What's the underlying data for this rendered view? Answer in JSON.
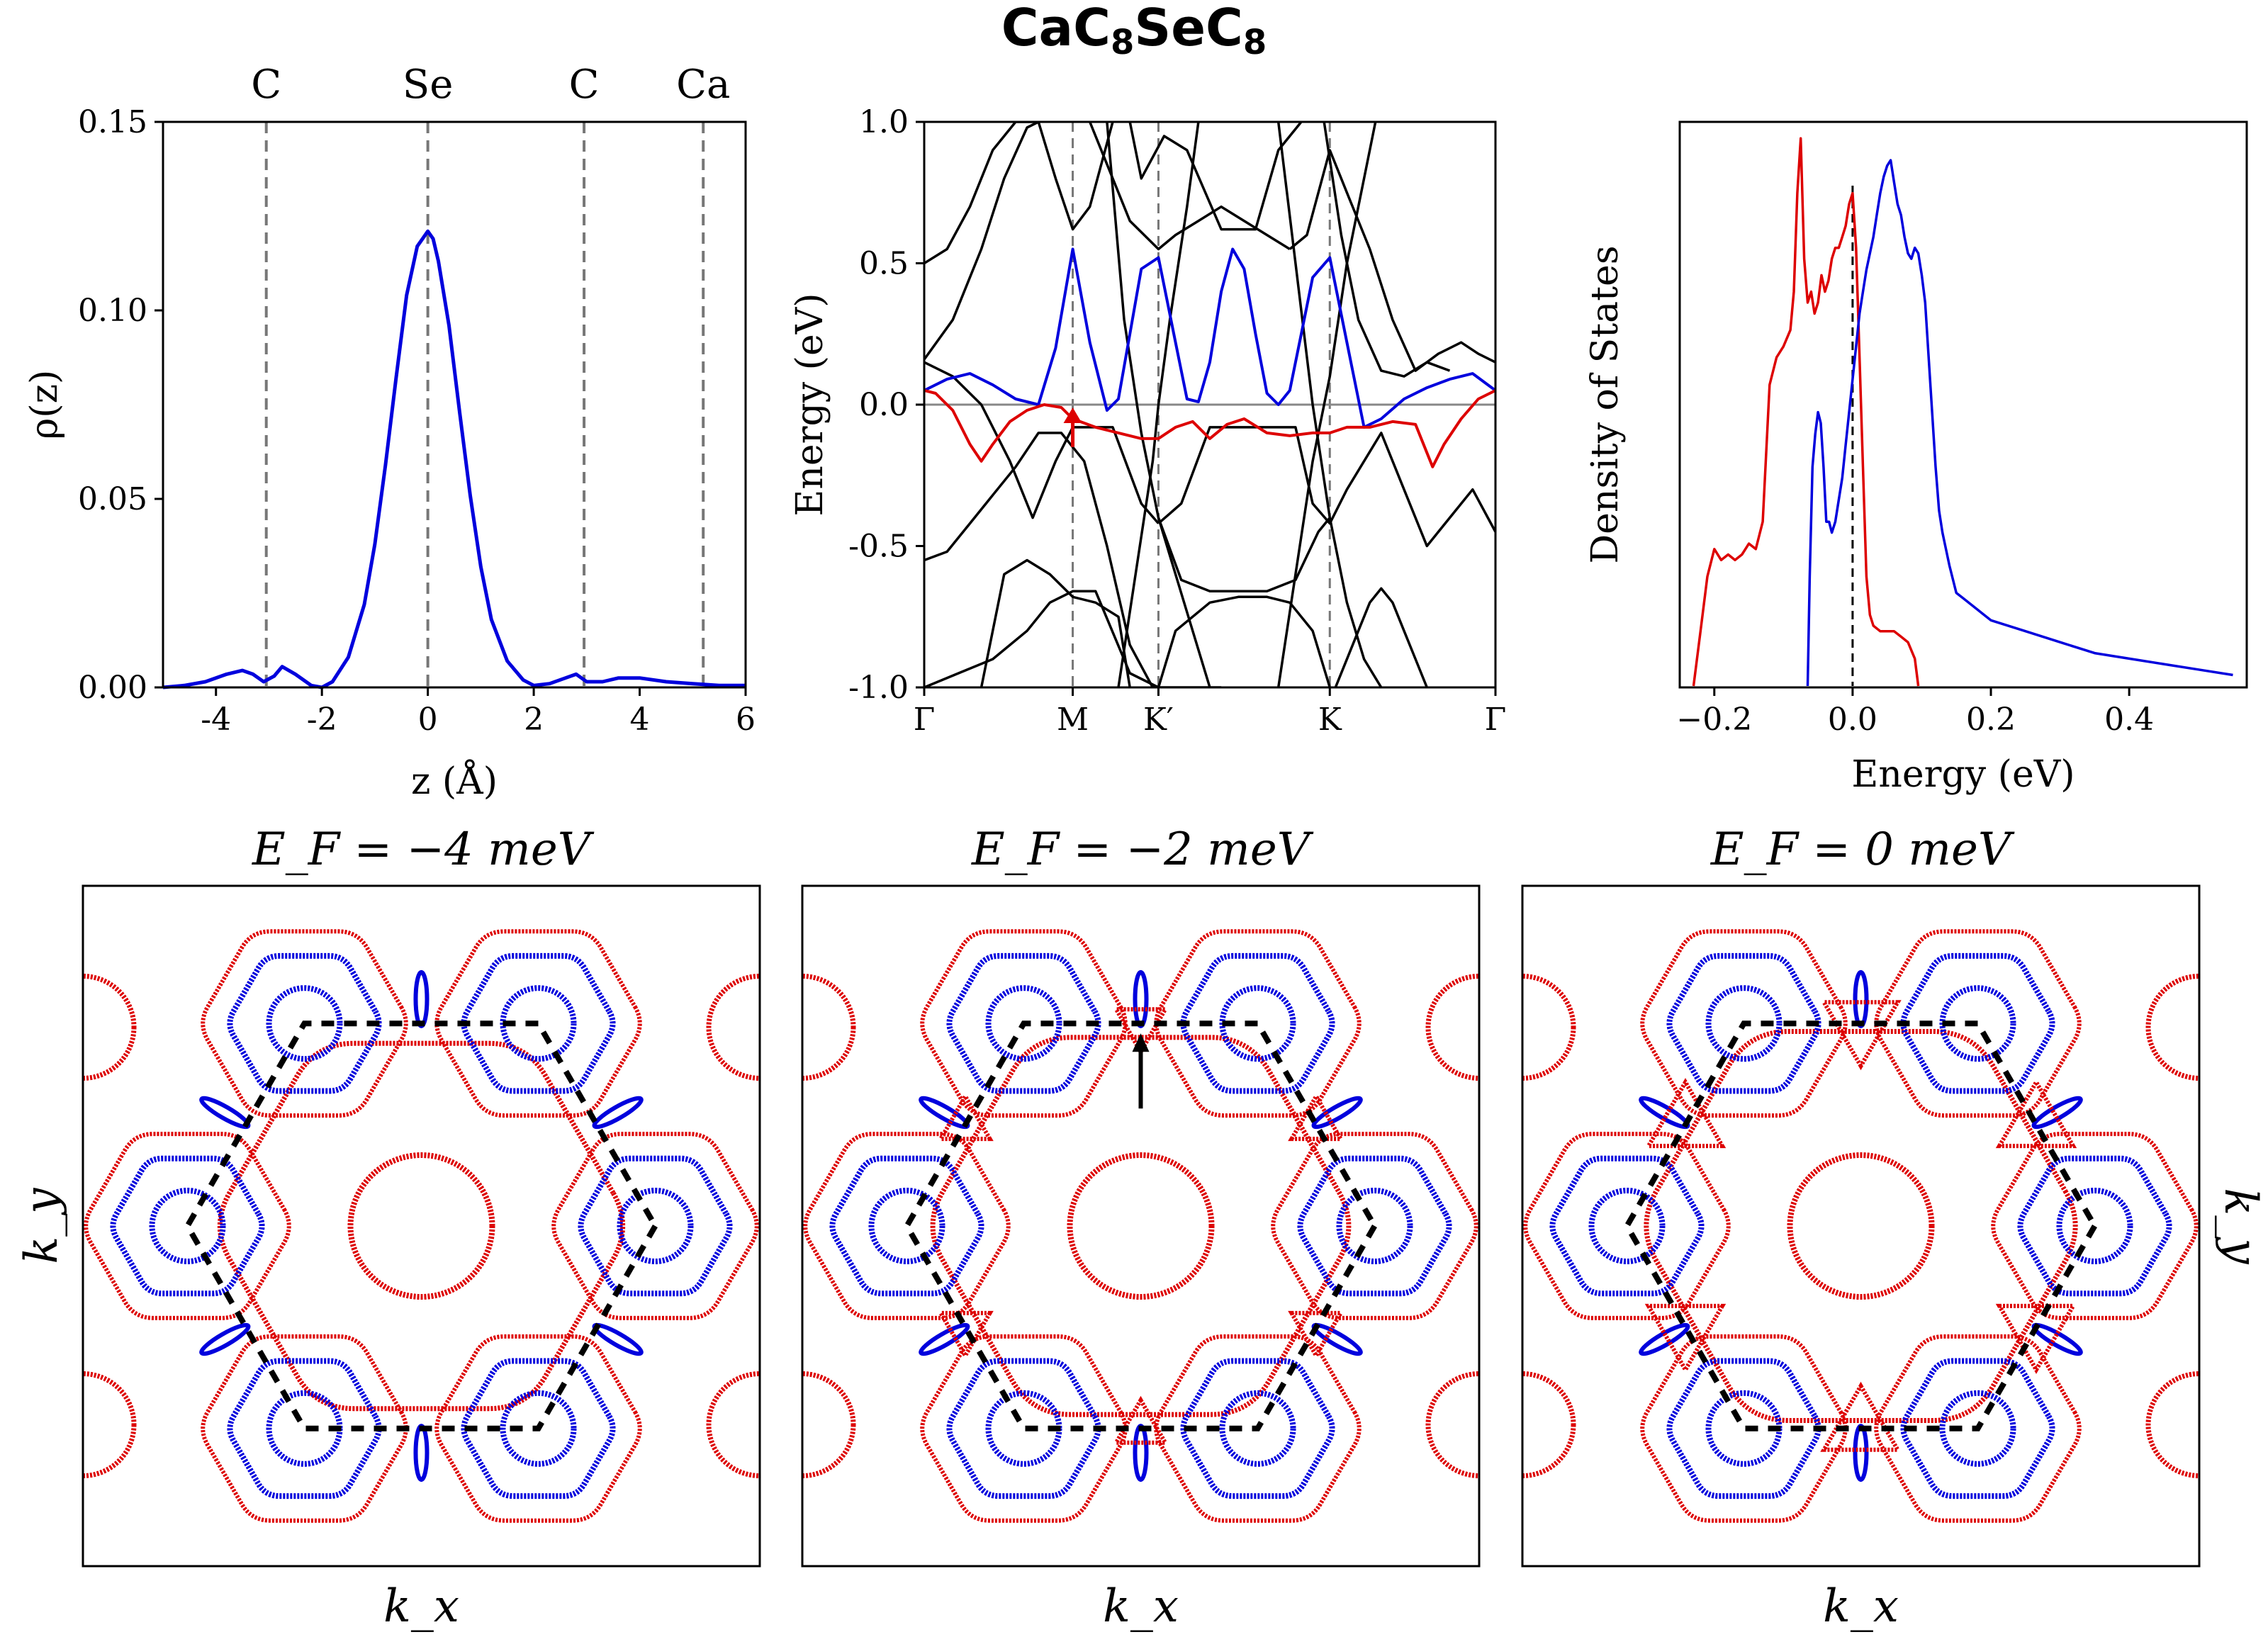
{
  "figure": {
    "title_main": "CaC",
    "title_sub1": "8",
    "title_mid": "SeC",
    "title_sub2": "8"
  },
  "chart_data": [
    {
      "type": "line",
      "panel": "charge-density",
      "xlabel": "z (Å)",
      "ylabel": "ρ(z)",
      "xlim": [
        -5,
        6
      ],
      "ylim": [
        0,
        0.15
      ],
      "xticks": [
        -4,
        -2,
        0,
        2,
        4,
        6
      ],
      "xtick_labels": [
        "-4",
        "-2",
        "0",
        "2",
        "4",
        "6"
      ],
      "yticks": [
        0,
        0.05,
        0.1,
        0.15
      ],
      "ytick_labels": [
        "0.00",
        "0.05",
        "0.10",
        "0.15"
      ],
      "atom_lines": [
        {
          "label": "C",
          "z": -3.05
        },
        {
          "label": "Se",
          "z": 0.0
        },
        {
          "label": "C",
          "z": 2.95
        },
        {
          "label": "Ca",
          "z": 5.2
        }
      ],
      "series": [
        {
          "name": "rho",
          "color": "#0000dd",
          "x": [
            -5.0,
            -4.6,
            -4.2,
            -3.8,
            -3.5,
            -3.3,
            -3.1,
            -2.9,
            -2.75,
            -2.5,
            -2.2,
            -2.0,
            -1.8,
            -1.5,
            -1.2,
            -1.0,
            -0.8,
            -0.6,
            -0.4,
            -0.2,
            -0.1,
            0.0,
            0.1,
            0.2,
            0.4,
            0.6,
            0.8,
            1.0,
            1.2,
            1.5,
            1.8,
            2.0,
            2.3,
            2.6,
            2.8,
            3.0,
            3.3,
            3.6,
            4.0,
            4.5,
            5.0,
            5.5,
            6.0
          ],
          "y": [
            0.0,
            0.0005,
            0.0015,
            0.0035,
            0.0045,
            0.0035,
            0.0015,
            0.003,
            0.0055,
            0.0035,
            0.0005,
            0.0,
            0.0015,
            0.008,
            0.022,
            0.038,
            0.059,
            0.082,
            0.104,
            0.117,
            0.119,
            0.121,
            0.119,
            0.113,
            0.096,
            0.073,
            0.051,
            0.032,
            0.018,
            0.007,
            0.002,
            0.0005,
            0.001,
            0.0025,
            0.0035,
            0.0015,
            0.0015,
            0.0025,
            0.0025,
            0.0015,
            0.001,
            0.0005,
            0.0005
          ]
        }
      ]
    },
    {
      "type": "line",
      "panel": "band-structure",
      "ylabel": "Energy (eV)",
      "ylim": [
        -1.0,
        1.0
      ],
      "xlim": [
        0,
        1
      ],
      "k_points": [
        {
          "label": "Γ",
          "x": 0.0
        },
        {
          "label": "M",
          "x": 0.26
        },
        {
          "label": "K′",
          "x": 0.41
        },
        {
          "label": "K",
          "x": 0.71
        },
        {
          "label": "Γ",
          "x": 1.0
        }
      ],
      "yticks": [
        -1.0,
        -0.5,
        0.0,
        0.5,
        1.0
      ],
      "ytick_labels": [
        "-1.0",
        "-0.5",
        "0.0",
        "0.5",
        "1.0"
      ],
      "fermi_level": 0.0,
      "arrow": {
        "x": 0.26,
        "from": -0.15,
        "to": -0.02,
        "color": "#dd0000"
      },
      "series": [
        {
          "name": "band-blue",
          "color": "#0000dd",
          "x": [
            0.0,
            0.04,
            0.08,
            0.12,
            0.16,
            0.2,
            0.23,
            0.26,
            0.29,
            0.32,
            0.34,
            0.36,
            0.38,
            0.41,
            0.44,
            0.46,
            0.48,
            0.5,
            0.52,
            0.54,
            0.56,
            0.58,
            0.6,
            0.62,
            0.64,
            0.66,
            0.68,
            0.71,
            0.74,
            0.77,
            0.8,
            0.84,
            0.88,
            0.92,
            0.96,
            1.0
          ],
          "y": [
            0.05,
            0.09,
            0.11,
            0.07,
            0.02,
            0.0,
            0.2,
            0.55,
            0.22,
            -0.02,
            0.02,
            0.25,
            0.48,
            0.52,
            0.22,
            0.02,
            0.01,
            0.15,
            0.4,
            0.55,
            0.48,
            0.25,
            0.04,
            0.0,
            0.05,
            0.25,
            0.45,
            0.52,
            0.22,
            -0.08,
            -0.05,
            0.02,
            0.06,
            0.09,
            0.11,
            0.05
          ]
        },
        {
          "name": "band-red",
          "color": "#dd0000",
          "x": [
            0.0,
            0.02,
            0.05,
            0.08,
            0.1,
            0.12,
            0.15,
            0.18,
            0.21,
            0.24,
            0.26,
            0.3,
            0.34,
            0.38,
            0.41,
            0.44,
            0.47,
            0.5,
            0.53,
            0.56,
            0.6,
            0.64,
            0.68,
            0.71,
            0.74,
            0.78,
            0.82,
            0.86,
            0.89,
            0.91,
            0.94,
            0.97,
            1.0
          ],
          "y": [
            0.05,
            0.04,
            -0.02,
            -0.14,
            -0.2,
            -0.14,
            -0.06,
            -0.02,
            0.0,
            -0.01,
            -0.05,
            -0.08,
            -0.1,
            -0.12,
            -0.12,
            -0.08,
            -0.06,
            -0.12,
            -0.07,
            -0.05,
            -0.1,
            -0.11,
            -0.1,
            -0.1,
            -0.08,
            -0.08,
            -0.06,
            -0.07,
            -0.22,
            -0.14,
            -0.05,
            0.02,
            0.05
          ]
        }
      ],
      "black_bands": [
        {
          "x": [
            0.0,
            0.05,
            0.1,
            0.15,
            0.19,
            0.23,
            0.26,
            0.29,
            0.33,
            0.38,
            0.41
          ],
          "y": [
            0.15,
            0.1,
            0.0,
            -0.2,
            -0.4,
            -0.2,
            -0.08,
            -0.08,
            -0.08,
            -0.35,
            -0.42
          ]
        },
        {
          "x": [
            0.41,
            0.45,
            0.5,
            0.55,
            0.6,
            0.65,
            0.68,
            0.71,
            0.74,
            0.8,
            0.84,
            0.88,
            0.92,
            0.96,
            1.0
          ],
          "y": [
            -0.42,
            -0.35,
            -0.08,
            -0.08,
            -0.08,
            -0.08,
            -0.35,
            -0.42,
            -0.3,
            -0.1,
            -0.3,
            -0.5,
            -0.4,
            -0.3,
            -0.45
          ]
        },
        {
          "x": [
            0.0,
            0.04,
            0.08,
            0.12,
            0.16,
            0.2,
            0.24,
            0.28,
            0.32,
            0.36,
            0.4,
            0.44,
            0.48,
            0.52
          ],
          "y": [
            -0.55,
            -0.52,
            -0.42,
            -0.32,
            -0.22,
            -0.1,
            -0.1,
            -0.2,
            -0.5,
            -0.85,
            -1.0,
            -1.0,
            -1.0,
            -1.0
          ]
        },
        {
          "x": [
            0.1,
            0.14,
            0.18,
            0.22,
            0.26,
            0.3,
            0.34,
            0.36
          ],
          "y": [
            -1.0,
            -0.6,
            -0.55,
            -0.6,
            -0.68,
            -0.7,
            -0.75,
            -1.0
          ]
        },
        {
          "x": [
            0.0,
            0.06,
            0.12,
            0.18,
            0.22,
            0.26,
            0.3,
            0.36,
            0.41
          ],
          "y": [
            -1.0,
            -0.95,
            -0.9,
            -0.8,
            -0.7,
            -0.66,
            -0.66,
            -0.95,
            -1.0
          ]
        },
        {
          "x": [
            0.41,
            0.44,
            0.5,
            0.55,
            0.6,
            0.64,
            0.68,
            0.71
          ],
          "y": [
            -1.0,
            -0.8,
            -0.7,
            -0.68,
            -0.68,
            -0.7,
            -0.8,
            -1.0
          ]
        },
        {
          "x": [
            0.41,
            0.45,
            0.5,
            0.55,
            0.6,
            0.65,
            0.69,
            0.71
          ],
          "y": [
            -0.4,
            -0.62,
            -0.66,
            -0.66,
            -0.66,
            -0.62,
            -0.45,
            -0.4
          ]
        },
        {
          "x": [
            0.72,
            0.75,
            0.78,
            0.8,
            0.82,
            0.84,
            0.86,
            0.88
          ],
          "y": [
            -1.0,
            -0.85,
            -0.7,
            -0.65,
            -0.7,
            -0.8,
            -0.9,
            -1.0
          ]
        },
        {
          "x": [
            0.0,
            0.04,
            0.08,
            0.12,
            0.16,
            0.2,
            0.23,
            0.26,
            0.29,
            0.33
          ],
          "y": [
            0.5,
            0.55,
            0.7,
            0.9,
            1.0,
            1.0,
            0.8,
            0.62,
            0.7,
            1.0
          ]
        },
        {
          "x": [
            0.0,
            0.05,
            0.1,
            0.14,
            0.18,
            0.2
          ],
          "y": [
            0.16,
            0.3,
            0.55,
            0.8,
            0.98,
            1.0
          ]
        },
        {
          "x": [
            0.29,
            0.32,
            0.36,
            0.41,
            0.44,
            0.48,
            0.52,
            0.56,
            0.6,
            0.64
          ],
          "y": [
            1.0,
            0.85,
            0.65,
            0.55,
            0.6,
            0.65,
            0.7,
            0.65,
            0.6,
            0.55
          ]
        },
        {
          "x": [
            0.36,
            0.38,
            0.42,
            0.46,
            0.52,
            0.58,
            0.62,
            0.66
          ],
          "y": [
            1.0,
            0.8,
            0.95,
            0.9,
            0.62,
            0.62,
            0.9,
            1.0
          ]
        },
        {
          "x": [
            0.64,
            0.67,
            0.71,
            0.74,
            0.78,
            0.82,
            0.86,
            0.9,
            0.94,
            0.97,
            1.0
          ],
          "y": [
            0.55,
            0.6,
            0.9,
            0.75,
            0.55,
            0.3,
            0.12,
            0.18,
            0.22,
            0.18,
            0.15
          ]
        },
        {
          "x": [
            0.7,
            0.73,
            0.76,
            0.8,
            0.84,
            0.88,
            0.92
          ],
          "y": [
            1.0,
            0.6,
            0.3,
            0.12,
            0.1,
            0.15,
            0.12
          ]
        },
        {
          "x": [
            0.32,
            0.35,
            0.38,
            0.41,
            0.44,
            0.47,
            0.5
          ],
          "y": [
            1.0,
            0.3,
            -0.1,
            -0.4,
            -0.6,
            -0.8,
            -1.0
          ]
        },
        {
          "x": [
            0.34,
            0.37,
            0.4,
            0.41,
            0.43,
            0.46,
            0.48
          ],
          "y": [
            -1.0,
            -0.6,
            -0.2,
            0.0,
            0.3,
            0.7,
            1.0
          ]
        },
        {
          "x": [
            0.62,
            0.65,
            0.68,
            0.71,
            0.74,
            0.77,
            0.8
          ],
          "y": [
            1.0,
            0.5,
            0.0,
            -0.4,
            -0.7,
            -0.9,
            -1.0
          ]
        },
        {
          "x": [
            0.62,
            0.65,
            0.68,
            0.71,
            0.74,
            0.77,
            0.79
          ],
          "y": [
            -1.0,
            -0.6,
            -0.2,
            0.1,
            0.5,
            0.8,
            1.0
          ]
        }
      ]
    },
    {
      "type": "line",
      "panel": "density-of-states",
      "xlabel": "Energy (eV)",
      "ylabel": "Density of States",
      "xlim": [
        -0.25,
        0.57
      ],
      "xticks": [
        -0.2,
        0.0,
        0.2,
        0.4
      ],
      "xtick_labels": [
        "−0.2",
        "0.0",
        "0.2",
        "0.4"
      ],
      "fermi_level": 0.0,
      "series": [
        {
          "name": "dos-red",
          "color": "#dd0000",
          "x": [
            -0.23,
            -0.22,
            -0.21,
            -0.2,
            -0.19,
            -0.18,
            -0.17,
            -0.16,
            -0.15,
            -0.14,
            -0.13,
            -0.12,
            -0.11,
            -0.1,
            -0.09,
            -0.085,
            -0.08,
            -0.075,
            -0.07,
            -0.065,
            -0.06,
            -0.055,
            -0.05,
            -0.045,
            -0.04,
            -0.035,
            -0.03,
            -0.025,
            -0.02,
            -0.015,
            -0.01,
            -0.005,
            0.0,
            0.005,
            0.01,
            0.015,
            0.02,
            0.025,
            0.03,
            0.04,
            0.05,
            0.06,
            0.07,
            0.08,
            0.09,
            0.095
          ],
          "y": [
            0.0,
            0.1,
            0.2,
            0.25,
            0.23,
            0.24,
            0.23,
            0.24,
            0.26,
            0.25,
            0.3,
            0.55,
            0.6,
            0.62,
            0.65,
            0.72,
            0.9,
            1.0,
            0.78,
            0.7,
            0.72,
            0.68,
            0.7,
            0.75,
            0.72,
            0.74,
            0.78,
            0.8,
            0.8,
            0.82,
            0.84,
            0.88,
            0.9,
            0.8,
            0.6,
            0.4,
            0.2,
            0.13,
            0.11,
            0.1,
            0.1,
            0.1,
            0.09,
            0.08,
            0.05,
            0.0
          ]
        },
        {
          "name": "dos-blue",
          "color": "#0000dd",
          "x": [
            -0.065,
            -0.062,
            -0.058,
            -0.054,
            -0.05,
            -0.046,
            -0.042,
            -0.038,
            -0.034,
            -0.03,
            -0.025,
            -0.02,
            -0.015,
            -0.01,
            -0.005,
            0.0,
            0.005,
            0.01,
            0.015,
            0.02,
            0.025,
            0.03,
            0.035,
            0.04,
            0.045,
            0.05,
            0.055,
            0.06,
            0.065,
            0.07,
            0.075,
            0.08,
            0.085,
            0.09,
            0.095,
            0.1,
            0.105,
            0.11,
            0.115,
            0.12,
            0.125,
            0.13,
            0.135,
            0.14,
            0.15,
            0.16,
            0.18,
            0.2,
            0.25,
            0.3,
            0.35,
            0.4,
            0.45,
            0.5,
            0.55
          ],
          "y": [
            0.0,
            0.2,
            0.4,
            0.46,
            0.5,
            0.48,
            0.4,
            0.3,
            0.3,
            0.28,
            0.3,
            0.34,
            0.38,
            0.44,
            0.5,
            0.56,
            0.62,
            0.68,
            0.72,
            0.76,
            0.79,
            0.82,
            0.86,
            0.9,
            0.93,
            0.95,
            0.96,
            0.92,
            0.88,
            0.86,
            0.82,
            0.79,
            0.78,
            0.8,
            0.79,
            0.75,
            0.7,
            0.6,
            0.5,
            0.4,
            0.32,
            0.28,
            0.25,
            0.22,
            0.17,
            0.16,
            0.14,
            0.12,
            0.1,
            0.08,
            0.06,
            0.05,
            0.04,
            0.03,
            0.02
          ]
        }
      ]
    },
    {
      "type": "scatter",
      "panel": "fermi-surface",
      "titles": [
        "E_F = −4 meV",
        "E_F = −2 meV",
        "E_F = 0 meV"
      ],
      "xlabel": "k_x",
      "ylabel": "k_y",
      "colors": {
        "electron": "#dd0000",
        "hole": "#0000dd",
        "bz": "#000000"
      }
    }
  ]
}
